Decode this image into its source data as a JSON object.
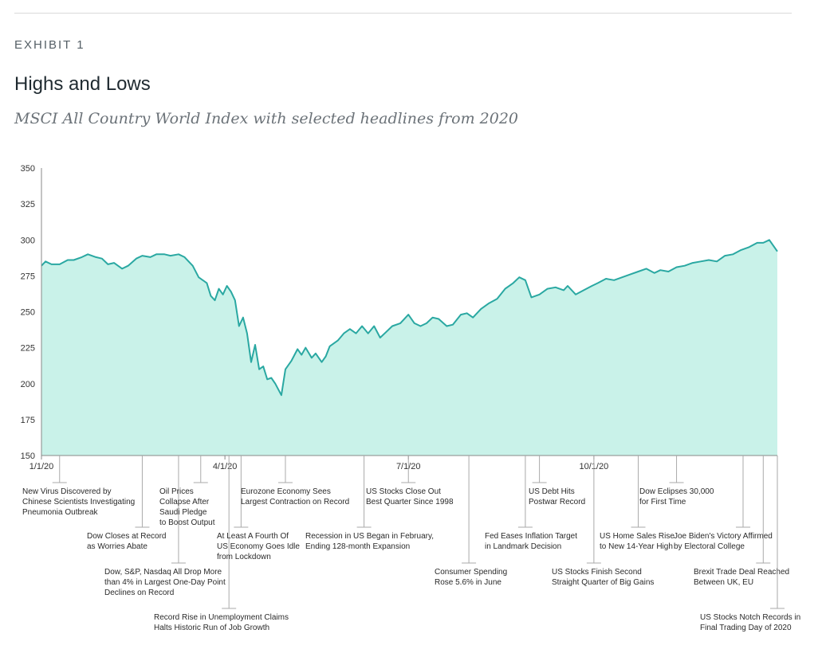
{
  "header": {
    "exhibit": "EXHIBIT 1",
    "title": "Highs and Lows",
    "subtitle": "MSCI All Country World Index with selected headlines from 2020"
  },
  "colors": {
    "line": "#2aa8a2",
    "fill": "#c9f2e9",
    "axis": "#888888"
  },
  "chart_data": {
    "type": "area",
    "title": "Highs and Lows",
    "subtitle": "MSCI All Country World Index with selected headlines from 2020",
    "ylim": [
      150,
      350
    ],
    "yticks": [
      150,
      175,
      200,
      225,
      250,
      275,
      300,
      325,
      350
    ],
    "xrange": [
      "2020-01-01",
      "2020-12-31"
    ],
    "xticks": [
      {
        "date": "2020-01-01",
        "label": "1/1/20"
      },
      {
        "date": "2020-04-01",
        "label": "4/1/20"
      },
      {
        "date": "2020-07-01",
        "label": "7/1/20"
      },
      {
        "date": "2020-10-01",
        "label": "10/1/20"
      }
    ],
    "grid": false,
    "series": [
      {
        "points": [
          [
            "2020-01-01",
            282
          ],
          [
            "2020-01-03",
            285
          ],
          [
            "2020-01-06",
            283
          ],
          [
            "2020-01-10",
            283
          ],
          [
            "2020-01-14",
            286
          ],
          [
            "2020-01-17",
            286
          ],
          [
            "2020-01-21",
            288
          ],
          [
            "2020-01-24",
            290
          ],
          [
            "2020-01-28",
            288
          ],
          [
            "2020-01-31",
            287
          ],
          [
            "2020-02-03",
            283
          ],
          [
            "2020-02-06",
            284
          ],
          [
            "2020-02-10",
            280
          ],
          [
            "2020-02-13",
            282
          ],
          [
            "2020-02-17",
            287
          ],
          [
            "2020-02-20",
            289
          ],
          [
            "2020-02-24",
            288
          ],
          [
            "2020-02-27",
            290
          ],
          [
            "2020-03-02",
            290
          ],
          [
            "2020-03-05",
            289
          ],
          [
            "2020-03-09",
            290
          ],
          [
            "2020-03-12",
            288
          ],
          [
            "2020-03-16",
            282
          ],
          [
            "2020-03-19",
            274
          ],
          [
            "2020-03-23",
            270
          ],
          [
            "2020-03-25",
            261
          ],
          [
            "2020-03-27",
            258
          ],
          [
            "2020-03-29",
            266
          ],
          [
            "2020-03-31",
            262
          ],
          [
            "2020-04-02",
            268
          ],
          [
            "2020-04-04",
            264
          ],
          [
            "2020-04-06",
            258
          ],
          [
            "2020-04-08",
            240
          ],
          [
            "2020-04-10",
            246
          ],
          [
            "2020-04-12",
            235
          ],
          [
            "2020-04-14",
            215
          ],
          [
            "2020-04-16",
            227
          ],
          [
            "2020-04-18",
            210
          ],
          [
            "2020-04-20",
            212
          ],
          [
            "2020-04-22",
            203
          ],
          [
            "2020-04-24",
            204
          ],
          [
            "2020-04-26",
            200
          ],
          [
            "2020-04-29",
            192
          ],
          [
            "2020-05-01",
            210
          ],
          [
            "2020-05-04",
            216
          ],
          [
            "2020-05-07",
            224
          ],
          [
            "2020-05-09",
            220
          ],
          [
            "2020-05-11",
            225
          ],
          [
            "2020-05-14",
            218
          ],
          [
            "2020-05-16",
            221
          ],
          [
            "2020-05-19",
            215
          ],
          [
            "2020-05-21",
            219
          ],
          [
            "2020-05-23",
            226
          ],
          [
            "2020-05-27",
            230
          ],
          [
            "2020-05-30",
            235
          ],
          [
            "2020-06-02",
            238
          ],
          [
            "2020-06-05",
            235
          ],
          [
            "2020-06-08",
            240
          ],
          [
            "2020-06-11",
            235
          ],
          [
            "2020-06-14",
            240
          ],
          [
            "2020-06-17",
            232
          ],
          [
            "2020-06-20",
            236
          ],
          [
            "2020-06-23",
            240
          ],
          [
            "2020-06-27",
            242
          ],
          [
            "2020-07-01",
            248
          ],
          [
            "2020-07-04",
            242
          ],
          [
            "2020-07-07",
            240
          ],
          [
            "2020-07-10",
            242
          ],
          [
            "2020-07-13",
            246
          ],
          [
            "2020-07-16",
            245
          ],
          [
            "2020-07-20",
            240
          ],
          [
            "2020-07-23",
            241
          ],
          [
            "2020-07-27",
            248
          ],
          [
            "2020-07-30",
            249
          ],
          [
            "2020-08-02",
            246
          ],
          [
            "2020-08-06",
            252
          ],
          [
            "2020-08-10",
            256
          ],
          [
            "2020-08-14",
            259
          ],
          [
            "2020-08-18",
            266
          ],
          [
            "2020-08-22",
            270
          ],
          [
            "2020-08-25",
            274
          ],
          [
            "2020-08-28",
            272
          ],
          [
            "2020-08-31",
            260
          ],
          [
            "2020-09-04",
            262
          ],
          [
            "2020-09-08",
            266
          ],
          [
            "2020-09-12",
            267
          ],
          [
            "2020-09-16",
            265
          ],
          [
            "2020-09-18",
            268
          ],
          [
            "2020-09-22",
            262
          ],
          [
            "2020-09-26",
            265
          ],
          [
            "2020-09-30",
            268
          ],
          [
            "2020-10-03",
            270
          ],
          [
            "2020-10-07",
            273
          ],
          [
            "2020-10-11",
            272
          ],
          [
            "2020-10-15",
            274
          ],
          [
            "2020-10-19",
            276
          ],
          [
            "2020-10-23",
            278
          ],
          [
            "2020-10-27",
            280
          ],
          [
            "2020-10-31",
            277
          ],
          [
            "2020-11-03",
            279
          ],
          [
            "2020-11-07",
            278
          ],
          [
            "2020-11-11",
            281
          ],
          [
            "2020-11-15",
            282
          ],
          [
            "2020-11-19",
            284
          ],
          [
            "2020-11-23",
            285
          ],
          [
            "2020-11-27",
            286
          ],
          [
            "2020-12-01",
            285
          ],
          [
            "2020-12-05",
            289
          ],
          [
            "2020-12-09",
            290
          ],
          [
            "2020-12-13",
            293
          ],
          [
            "2020-12-17",
            295
          ],
          [
            "2020-12-21",
            298
          ],
          [
            "2020-12-24",
            298
          ],
          [
            "2020-12-27",
            300
          ],
          [
            "2020-12-31",
            292
          ]
        ]
      }
    ],
    "annotations": [
      {
        "date": "2020-01-10",
        "lines": [
          "New Virus Discovered by",
          "Chinese Scientists Investigating",
          "Pneumonia Outbreak"
        ]
      },
      {
        "date": "2020-02-20",
        "lines": [
          "Dow Closes at Record",
          "as Worries Abate"
        ]
      },
      {
        "date": "2020-03-09",
        "lines": [
          "Dow, S&P, Nasdaq All Drop More",
          "than 4% in Largest One-Day Point",
          "Declines on Record"
        ]
      },
      {
        "date": "2020-03-20",
        "lines": [
          "Oil Prices",
          "Collapse After",
          "Saudi Pledge",
          "to Boost Output"
        ]
      },
      {
        "date": "2020-04-03",
        "lines": [
          "Record Rise in Unemployment Claims",
          "Halts Historic Run of Job Growth"
        ]
      },
      {
        "date": "2020-04-09",
        "lines": [
          "At Least A Fourth Of",
          "US Economy Goes Idle",
          "from Lockdown"
        ]
      },
      {
        "date": "2020-05-01",
        "lines": [
          "Eurozone Economy Sees",
          "Largest Contraction on Record"
        ]
      },
      {
        "date": "2020-06-09",
        "lines": [
          "Recession in US Began in February,",
          "Ending 128-month Expansion"
        ]
      },
      {
        "date": "2020-07-01",
        "lines": [
          "US Stocks Close Out",
          "Best Quarter Since 1998"
        ]
      },
      {
        "date": "2020-07-31",
        "lines": [
          "Consumer Spending",
          "Rose 5.6% in June"
        ]
      },
      {
        "date": "2020-08-28",
        "lines": [
          "Fed Eases Inflation Target",
          "in Landmark Decision"
        ]
      },
      {
        "date": "2020-09-04",
        "lines": [
          "US Debt Hits",
          "Postwar Record"
        ]
      },
      {
        "date": "2020-10-01",
        "lines": [
          "US Stocks Finish Second",
          "Straight Quarter of Big Gains"
        ]
      },
      {
        "date": "2020-10-23",
        "lines": [
          "US Home Sales Rise",
          "to New 14-Year High"
        ]
      },
      {
        "date": "2020-11-11",
        "lines": [
          "Dow Eclipses 30,000",
          "for First Time"
        ]
      },
      {
        "date": "2020-12-14",
        "lines": [
          "Joe Biden's Victory Affirmed",
          "by Electoral College"
        ]
      },
      {
        "date": "2020-12-24",
        "lines": [
          "Brexit Trade Deal Reached",
          "Between UK, EU"
        ]
      },
      {
        "date": "2020-12-31",
        "lines": [
          "US Stocks Notch Records in",
          "Final Trading Day of 2020"
        ]
      }
    ]
  }
}
